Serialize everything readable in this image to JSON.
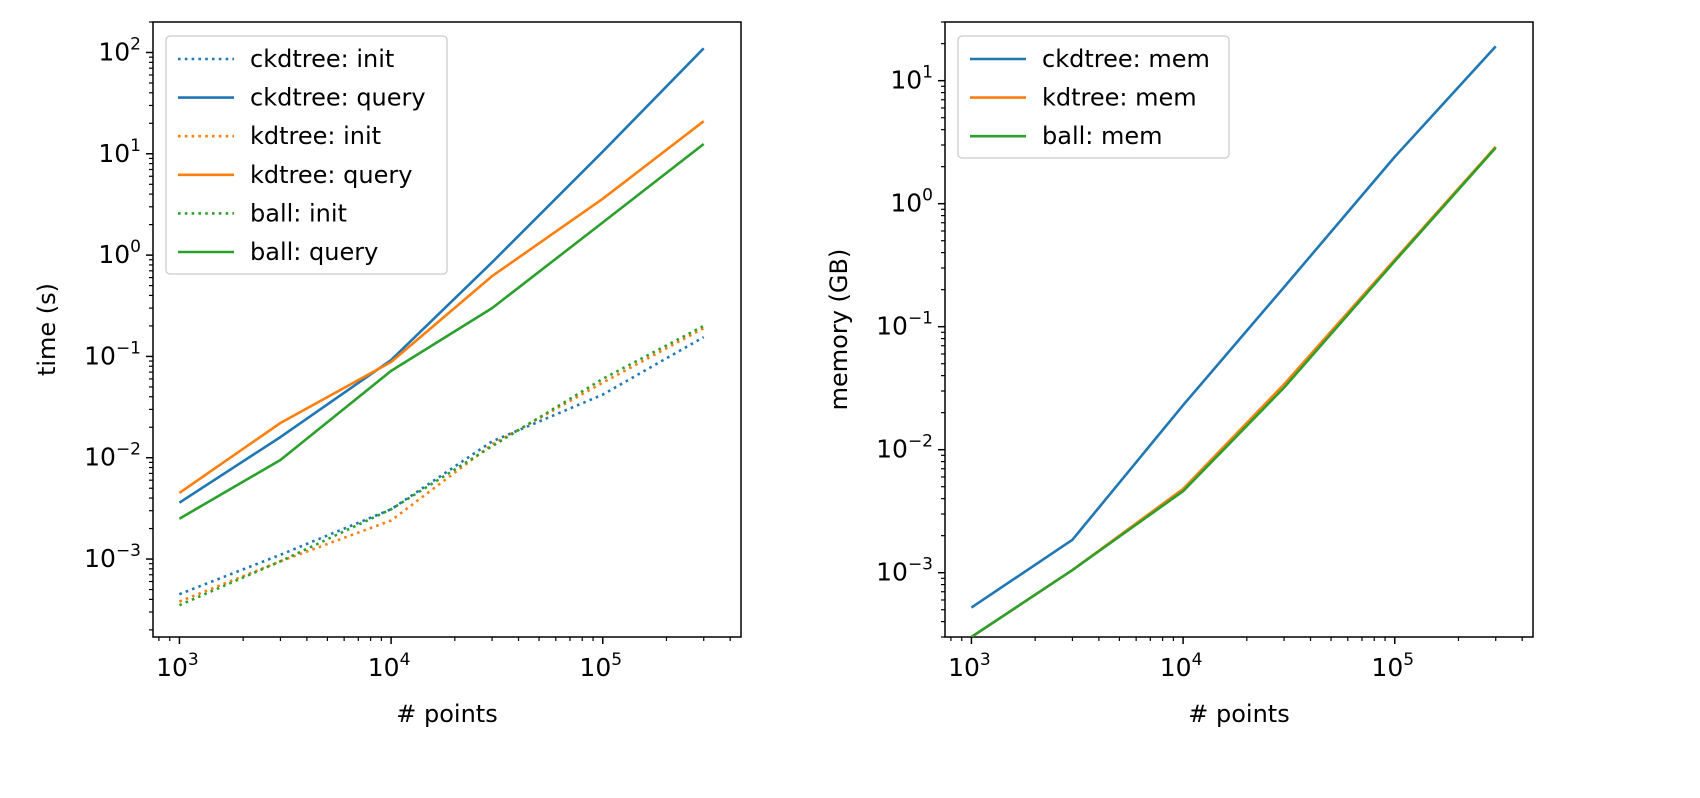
{
  "chart_data": [
    {
      "type": "line",
      "title": "",
      "xlabel": "# points",
      "ylabel": "time (s)",
      "xscale": "log",
      "yscale": "log",
      "xlim": [
        750,
        450000
      ],
      "ylim": [
        0.00017,
        200
      ],
      "x": [
        1000,
        3000,
        10000,
        30000,
        100000,
        300000
      ],
      "xticks": [
        {
          "value": 1000,
          "base": "10",
          "exp": "3"
        },
        {
          "value": 10000,
          "base": "10",
          "exp": "4"
        },
        {
          "value": 100000,
          "base": "10",
          "exp": "5"
        }
      ],
      "yticks": [
        {
          "value": 0.001,
          "base": "10",
          "exp": "−3"
        },
        {
          "value": 0.01,
          "base": "10",
          "exp": "−2"
        },
        {
          "value": 0.1,
          "base": "10",
          "exp": "−1"
        },
        {
          "value": 1,
          "base": "10",
          "exp": "0"
        },
        {
          "value": 10,
          "base": "10",
          "exp": "1"
        },
        {
          "value": 100,
          "base": "10",
          "exp": "2"
        }
      ],
      "legend_position": "top-left",
      "series": [
        {
          "name": "ckdtree: init",
          "color": "#1f77b4",
          "style": "dotted",
          "values": [
            0.00045,
            0.0011,
            0.0031,
            0.0145,
            0.042,
            0.155
          ]
        },
        {
          "name": "ckdtree: query",
          "color": "#1f77b4",
          "style": "solid",
          "values": [
            0.0036,
            0.016,
            0.092,
            0.85,
            10.5,
            110
          ]
        },
        {
          "name": "kdtree: init",
          "color": "#ff7f0e",
          "style": "dotted",
          "values": [
            0.00038,
            0.00095,
            0.0024,
            0.0135,
            0.055,
            0.19
          ]
        },
        {
          "name": "kdtree: query",
          "color": "#ff7f0e",
          "style": "solid",
          "values": [
            0.0045,
            0.022,
            0.088,
            0.62,
            3.6,
            21
          ]
        },
        {
          "name": "ball: init",
          "color": "#2ca02c",
          "style": "dotted",
          "values": [
            0.00035,
            0.00095,
            0.0031,
            0.013,
            0.06,
            0.2
          ]
        },
        {
          "name": "ball: query",
          "color": "#2ca02c",
          "style": "solid",
          "values": [
            0.0025,
            0.0095,
            0.072,
            0.3,
            2.1,
            12.5
          ]
        }
      ]
    },
    {
      "type": "line",
      "title": "",
      "xlabel": "# points",
      "ylabel": "memory (GB)",
      "xscale": "log",
      "yscale": "log",
      "xlim": [
        750,
        450000
      ],
      "ylim": [
        0.0003,
        30
      ],
      "x": [
        1000,
        3000,
        10000,
        30000,
        100000,
        300000
      ],
      "xticks": [
        {
          "value": 1000,
          "base": "10",
          "exp": "3"
        },
        {
          "value": 10000,
          "base": "10",
          "exp": "4"
        },
        {
          "value": 100000,
          "base": "10",
          "exp": "5"
        }
      ],
      "yticks": [
        {
          "value": 0.001,
          "base": "10",
          "exp": "−3"
        },
        {
          "value": 0.01,
          "base": "10",
          "exp": "−2"
        },
        {
          "value": 0.1,
          "base": "10",
          "exp": "−1"
        },
        {
          "value": 1,
          "base": "10",
          "exp": "0"
        },
        {
          "value": 10,
          "base": "10",
          "exp": "1"
        }
      ],
      "legend_position": "top-left",
      "series": [
        {
          "name": "ckdtree: mem",
          "color": "#1f77b4",
          "style": "solid",
          "values": [
            0.00052,
            0.00185,
            0.023,
            0.21,
            2.4,
            19
          ]
        },
        {
          "name": "kdtree: mem",
          "color": "#ff7f0e",
          "style": "solid",
          "values": [
            0.0003,
            0.00105,
            0.0048,
            0.034,
            0.35,
            2.9
          ]
        },
        {
          "name": "ball: mem",
          "color": "#2ca02c",
          "style": "solid",
          "values": [
            0.0003,
            0.00105,
            0.0046,
            0.032,
            0.34,
            2.85
          ]
        }
      ]
    }
  ]
}
